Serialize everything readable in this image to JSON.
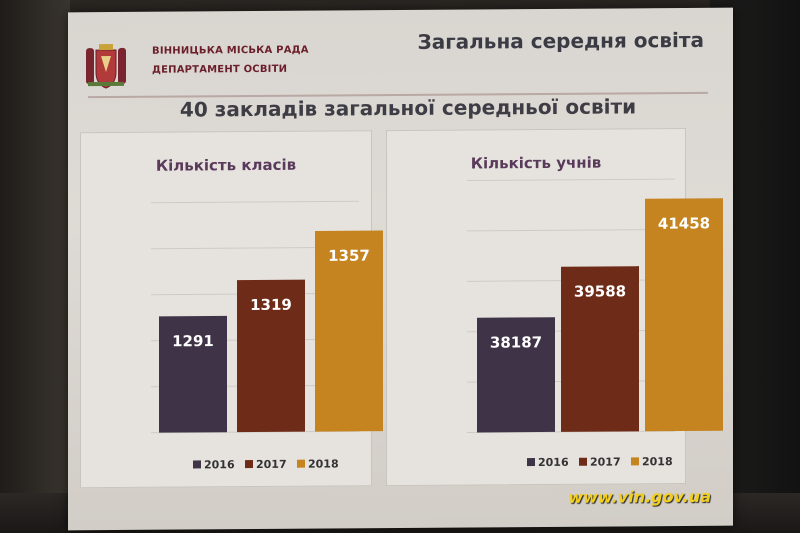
{
  "org": {
    "line1": "ВІННИЦЬКА МІСЬКА РАДА",
    "line2": "ДЕПАРТАМЕНТ ОСВІТИ"
  },
  "slide_title": "Загальна середня освіта",
  "subtitle": "40 закладів загальної середньої освіти",
  "watermark": "www.vin.gov.ua",
  "colors": {
    "2016": "#3f3447",
    "2017": "#6e2b18",
    "2018": "#c5841f"
  },
  "chart_data": [
    {
      "type": "bar",
      "title": "Кількість класів",
      "categories": [
        "2016",
        "2017",
        "2018"
      ],
      "values": [
        1291,
        1319,
        1357
      ],
      "ylim": [
        1200,
        1380
      ],
      "grid": true,
      "legend": "bottom",
      "legend_labels": [
        "2016",
        "2017",
        "2018"
      ]
    },
    {
      "type": "bar",
      "title": "Кількість учнів",
      "categories": [
        "2016",
        "2017",
        "2018"
      ],
      "values": [
        38187,
        39588,
        41458
      ],
      "ylim": [
        35000,
        42000
      ],
      "grid": true,
      "legend": "bottom",
      "legend_labels": [
        "2016",
        "2017",
        "2018"
      ]
    }
  ]
}
